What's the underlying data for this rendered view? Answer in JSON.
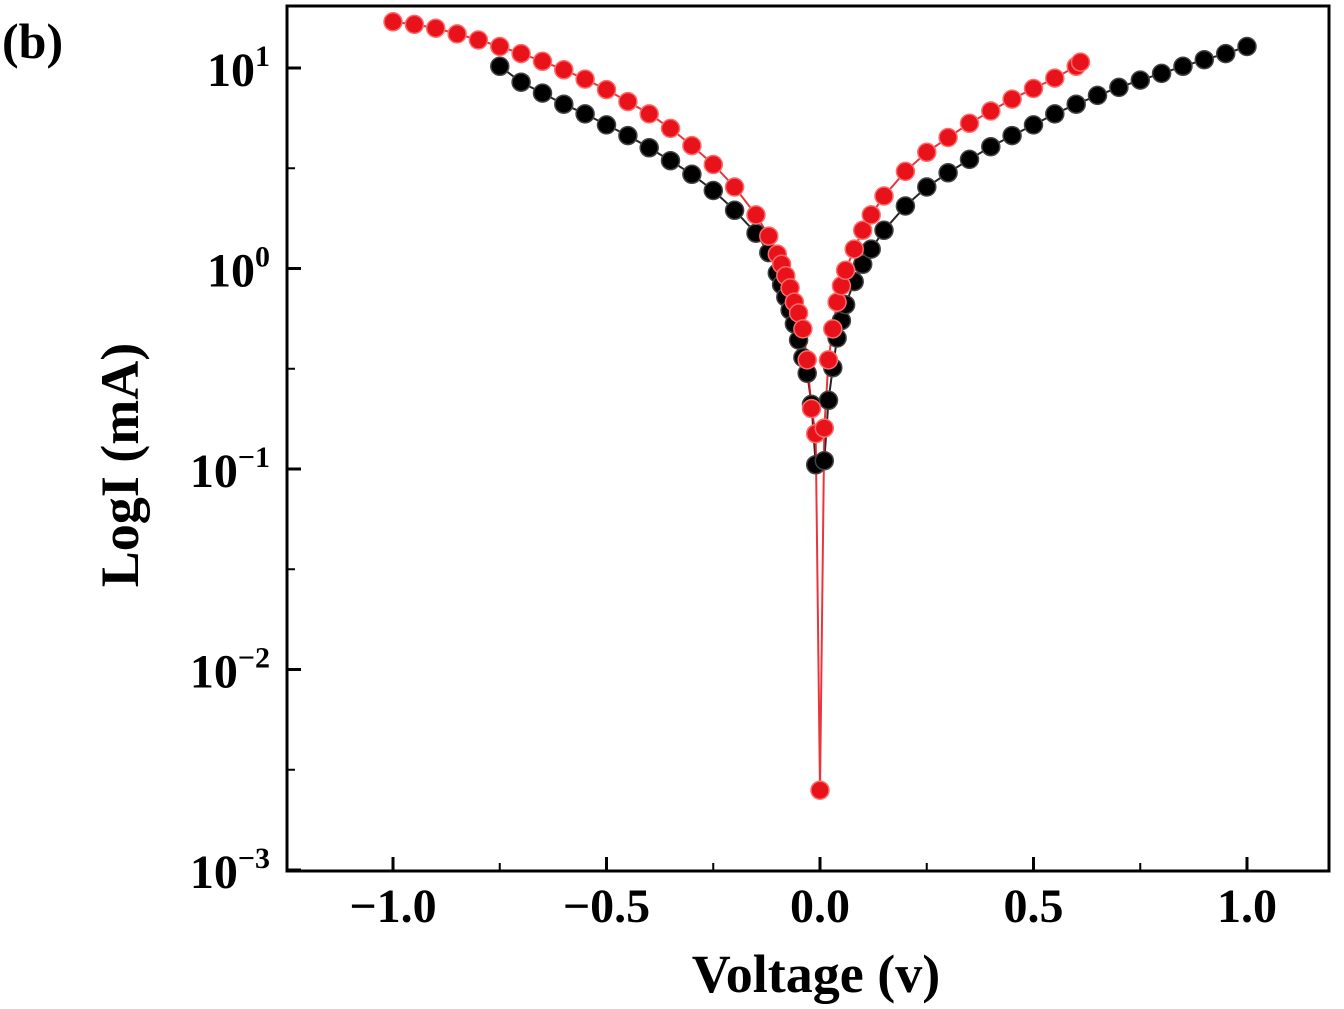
{
  "chart_data": {
    "type": "scatter",
    "panel_label": "(b)",
    "title": "",
    "xlabel": "Voltage (v)",
    "ylabel": "LogI (mA)",
    "xscale": "linear",
    "yscale": "log",
    "xlim": [
      -1.25,
      1.25
    ],
    "ylim": [
      0.001,
      20
    ],
    "grid": false,
    "legend": "none",
    "x_ticks": [
      {
        "value": -1.0,
        "label": "−1.0"
      },
      {
        "value": -0.5,
        "label": "−0.5"
      },
      {
        "value": 0.0,
        "label": "0.0"
      },
      {
        "value": 0.5,
        "label": "0.5"
      },
      {
        "value": 1.0,
        "label": "1.0"
      }
    ],
    "y_ticks": [
      {
        "value": 10,
        "base": "10",
        "exp": "1"
      },
      {
        "value": 1,
        "base": "10",
        "exp": "0"
      },
      {
        "value": 0.1,
        "base": "10",
        "exp": "−1"
      },
      {
        "value": 0.01,
        "base": "10",
        "exp": "−2"
      },
      {
        "value": 0.001,
        "base": "10",
        "exp": "−3"
      }
    ],
    "series": [
      {
        "name": "black",
        "color": "#000000",
        "marker": "circle",
        "points": [
          [
            -0.75,
            10.2
          ],
          [
            -0.7,
            8.5
          ],
          [
            -0.65,
            7.5
          ],
          [
            -0.6,
            6.6
          ],
          [
            -0.55,
            5.9
          ],
          [
            -0.5,
            5.2
          ],
          [
            -0.45,
            4.6
          ],
          [
            -0.4,
            4.0
          ],
          [
            -0.35,
            3.45
          ],
          [
            -0.3,
            2.95
          ],
          [
            -0.25,
            2.45
          ],
          [
            -0.2,
            1.95
          ],
          [
            -0.15,
            1.5
          ],
          [
            -0.12,
            1.2
          ],
          [
            -0.1,
            0.95
          ],
          [
            -0.09,
            0.83
          ],
          [
            -0.08,
            0.72
          ],
          [
            -0.07,
            0.62
          ],
          [
            -0.06,
            0.53
          ],
          [
            -0.05,
            0.44
          ],
          [
            -0.04,
            0.36
          ],
          [
            -0.03,
            0.3
          ],
          [
            -0.02,
            0.21
          ],
          [
            -0.01,
            0.105
          ],
          [
            0.01,
            0.11
          ],
          [
            0.02,
            0.22
          ],
          [
            0.03,
            0.32
          ],
          [
            0.04,
            0.45
          ],
          [
            0.05,
            0.55
          ],
          [
            0.06,
            0.66
          ],
          [
            0.08,
            0.86
          ],
          [
            0.1,
            1.05
          ],
          [
            0.12,
            1.25
          ],
          [
            0.15,
            1.55
          ],
          [
            0.2,
            2.05
          ],
          [
            0.25,
            2.55
          ],
          [
            0.3,
            3.0
          ],
          [
            0.35,
            3.5
          ],
          [
            0.4,
            4.05
          ],
          [
            0.45,
            4.6
          ],
          [
            0.5,
            5.2
          ],
          [
            0.55,
            5.9
          ],
          [
            0.6,
            6.6
          ],
          [
            0.65,
            7.3
          ],
          [
            0.7,
            8.0
          ],
          [
            0.75,
            8.7
          ],
          [
            0.8,
            9.4
          ],
          [
            0.85,
            10.2
          ],
          [
            0.9,
            11.0
          ],
          [
            0.95,
            11.8
          ],
          [
            1.0,
            12.8
          ]
        ]
      },
      {
        "name": "red",
        "color": "#e8121b",
        "marker": "circle",
        "points": [
          [
            -1.0,
            17.0
          ],
          [
            -0.95,
            16.5
          ],
          [
            -0.9,
            15.8
          ],
          [
            -0.85,
            14.8
          ],
          [
            -0.8,
            13.8
          ],
          [
            -0.75,
            12.8
          ],
          [
            -0.7,
            11.8
          ],
          [
            -0.65,
            10.8
          ],
          [
            -0.6,
            9.8
          ],
          [
            -0.55,
            8.8
          ],
          [
            -0.5,
            7.8
          ],
          [
            -0.45,
            6.8
          ],
          [
            -0.4,
            5.9
          ],
          [
            -0.35,
            5.0
          ],
          [
            -0.3,
            4.1
          ],
          [
            -0.25,
            3.3
          ],
          [
            -0.2,
            2.55
          ],
          [
            -0.15,
            1.85
          ],
          [
            -0.12,
            1.45
          ],
          [
            -0.1,
            1.18
          ],
          [
            -0.09,
            1.05
          ],
          [
            -0.08,
            0.92
          ],
          [
            -0.07,
            0.8
          ],
          [
            -0.06,
            0.68
          ],
          [
            -0.05,
            0.6
          ],
          [
            -0.04,
            0.5
          ],
          [
            -0.03,
            0.35
          ],
          [
            -0.02,
            0.2
          ],
          [
            -0.01,
            0.15
          ],
          [
            0.0,
            0.0025
          ],
          [
            0.01,
            0.16
          ],
          [
            0.02,
            0.35
          ],
          [
            0.03,
            0.5
          ],
          [
            0.04,
            0.68
          ],
          [
            0.05,
            0.82
          ],
          [
            0.06,
            0.98
          ],
          [
            0.08,
            1.25
          ],
          [
            0.1,
            1.55
          ],
          [
            0.12,
            1.85
          ],
          [
            0.15,
            2.3
          ],
          [
            0.2,
            3.05
          ],
          [
            0.25,
            3.8
          ],
          [
            0.3,
            4.5
          ],
          [
            0.35,
            5.3
          ],
          [
            0.4,
            6.1
          ],
          [
            0.45,
            7.0
          ],
          [
            0.5,
            7.9
          ],
          [
            0.55,
            8.9
          ],
          [
            0.6,
            10.2
          ],
          [
            0.61,
            10.7
          ]
        ]
      }
    ]
  }
}
